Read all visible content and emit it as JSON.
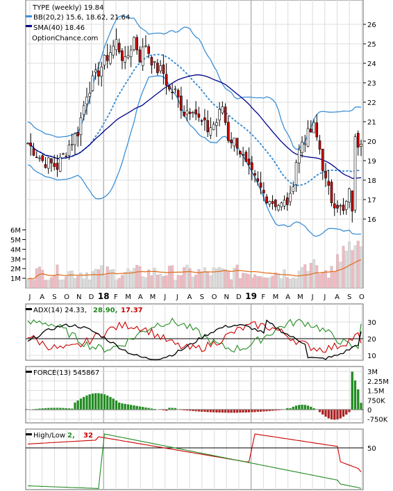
{
  "chart_data": [
    {
      "type": "candlestick",
      "panel": "price",
      "legend": [
        {
          "label": "TYPE (weekly) 19.84",
          "color": "#000000"
        },
        {
          "label": "BB(20,2) 15.6, 18.62, 21.64",
          "color": "#3b8fd6"
        },
        {
          "label": "SMA(40) 18.46",
          "color": "#00008b"
        }
      ],
      "watermark": "OptionChance.com",
      "ylim": [
        15,
        27
      ],
      "yticks": [
        "16",
        "17",
        "18",
        "19",
        "20",
        "21",
        "22",
        "23",
        "24",
        "25",
        "26"
      ],
      "last_value": 19.84,
      "bb_last": {
        "lower": 15.6,
        "middle": 18.62,
        "upper": 21.64
      },
      "sma_last": 18.46,
      "colors": {
        "up": "#ffffff",
        "down": "#cc0000",
        "bb": "#3b8fd6",
        "sma": "#00008b"
      }
    },
    {
      "type": "bar",
      "panel": "volume",
      "yticks": [
        "1M",
        "2M",
        "3M",
        "4M",
        "5M",
        "6M"
      ],
      "ylim": [
        0,
        6.8
      ],
      "unit": "M",
      "colors": {
        "up": "#dddddd",
        "down": "#f2b8c0",
        "ma": "#e07020"
      }
    },
    {
      "type": "line",
      "panel": "adx",
      "legend": {
        "label": "ADX(14) 24.33,",
        "plus_di": "28.90,",
        "minus_di": "17.37"
      },
      "ylim": [
        5,
        35
      ],
      "yticks": [
        "10",
        "20",
        "30"
      ],
      "last": {
        "adx": 24.33,
        "plus_di": 28.9,
        "minus_di": 17.37
      },
      "colors": {
        "adx": "#000000",
        "plus_di": "#228b22",
        "minus_di": "#cc0000"
      }
    },
    {
      "type": "bar",
      "panel": "force",
      "legend": "FORCE(13) 545867",
      "ylim": [
        -1,
        3.1
      ],
      "yticks": [
        "-750K",
        "0",
        "750K",
        "1.5M",
        "2.25M",
        "3M"
      ],
      "last": 545867,
      "colors": {
        "pos": "#228b22",
        "neg": "#aa2222"
      }
    },
    {
      "type": "line",
      "panel": "highlow",
      "legend": {
        "label": "High/Low",
        "green": "2,",
        "red": "32"
      },
      "ylim": [
        0,
        110
      ],
      "yticks": [
        "50"
      ],
      "colors": {
        "high": "#228b22",
        "low": "#cc0000"
      }
    }
  ],
  "x_axis": {
    "labels": [
      "J",
      "A",
      "S",
      "O",
      "N",
      "D",
      "18",
      "F",
      "M",
      "A",
      "M",
      "J",
      "J",
      "A",
      "S",
      "O",
      "N",
      "D",
      "19",
      "F",
      "M",
      "A",
      "M",
      "J",
      "J",
      "A",
      "S",
      "O"
    ]
  }
}
